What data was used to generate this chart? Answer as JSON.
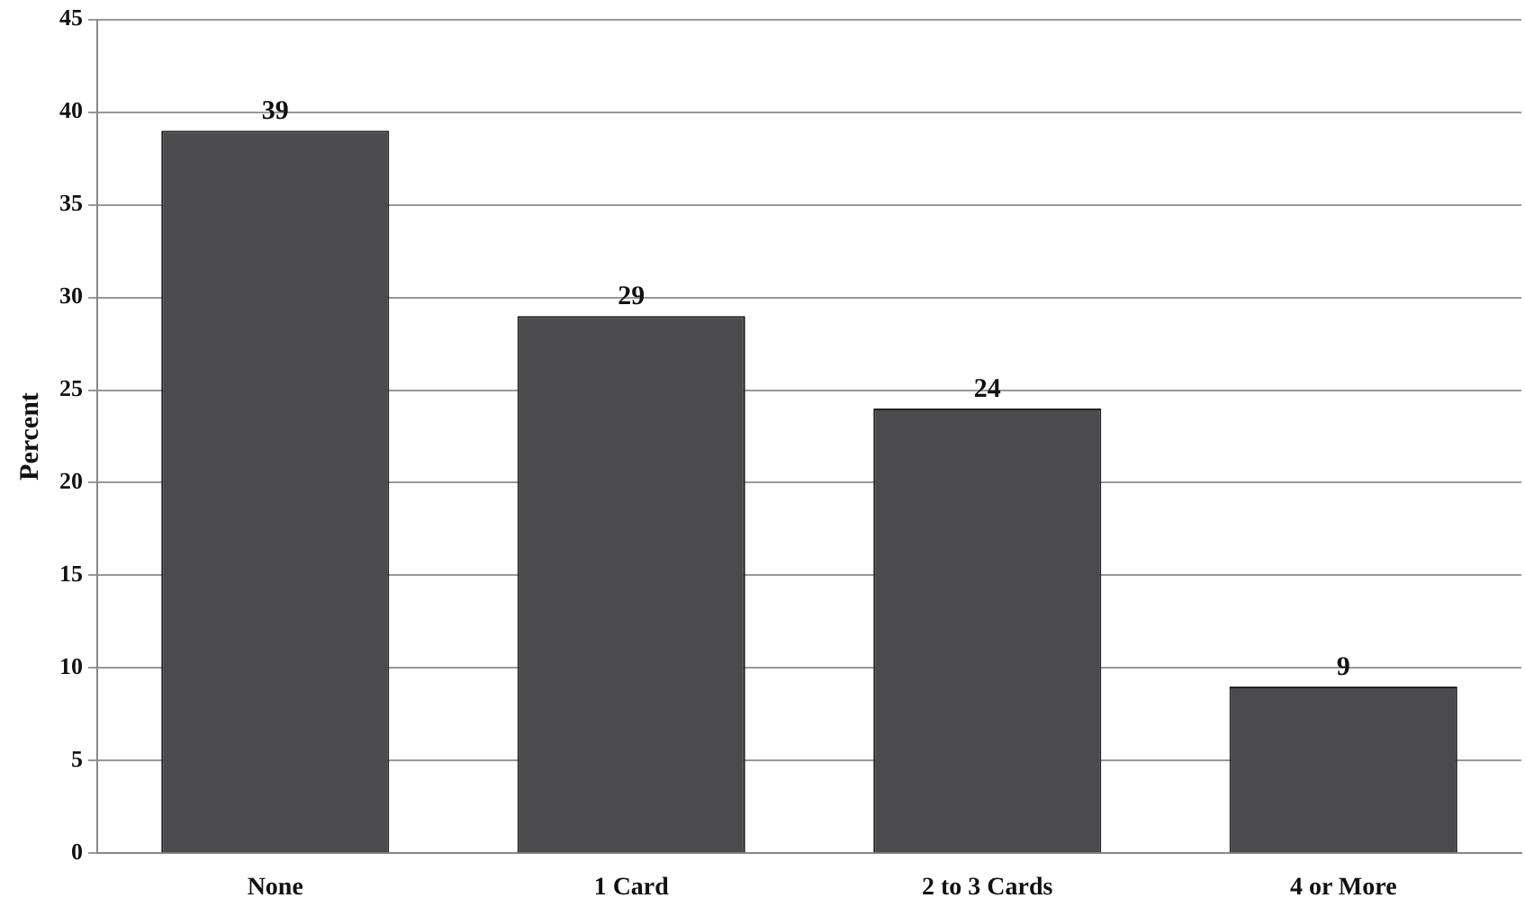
{
  "chart_data": {
    "type": "bar",
    "ylabel": "Percent",
    "categories": [
      "None",
      "1 Card",
      "2 to 3 Cards",
      "4 or More"
    ],
    "values": [
      39,
      29,
      24,
      9
    ],
    "color": "#4b4b4e",
    "ylim": [
      0,
      45
    ],
    "yticks": [
      0,
      5,
      10,
      15,
      20,
      25,
      30,
      35,
      40,
      45
    ],
    "grid": "y",
    "data_labels": true,
    "legend": false
  }
}
